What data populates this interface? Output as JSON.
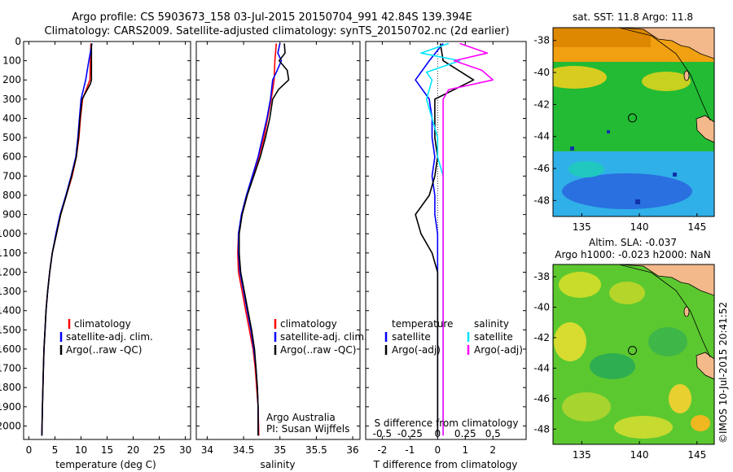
{
  "figure": {
    "title_line1": "Argo profile: CS 5903673_158 03-Jul-2015 20150704_991 42.84S 139.394E",
    "title_line2": "Climatology: CARS2009. Satellite-adjusted climatology: synTS_20150702.nc (2d earlier)",
    "credit": "©IMOS 10-Jul-2015 20:41:52"
  },
  "colors": {
    "climatology": "#ff0000",
    "satellite": "#0000ff",
    "argo": "#000000",
    "salinity_satellite": "#00e5ff",
    "salinity_argo": "#ff00ff",
    "land": "#f4b98a"
  },
  "chart_data": [
    {
      "type": "line",
      "id": "temperature",
      "xlabel": "temperature (deg C)",
      "ylabel": "",
      "xlim": [
        -1,
        31
      ],
      "ylim": [
        2070,
        0
      ],
      "xticks": [
        0,
        5,
        10,
        15,
        20,
        25,
        30
      ],
      "yticks": [
        0,
        100,
        200,
        300,
        400,
        500,
        600,
        700,
        800,
        900,
        1000,
        1100,
        1200,
        1300,
        1400,
        1500,
        1600,
        1700,
        1800,
        1900,
        2000
      ],
      "legend": {
        "position": "lower-center",
        "entries": [
          "climatology",
          "satellite-adj. clim.",
          "Argo(..raw -QC)"
        ]
      },
      "series": [
        {
          "name": "climatology",
          "color": "#ff0000",
          "points": [
            [
              11.9,
              10
            ],
            [
              11.8,
              100
            ],
            [
              11.7,
              200
            ],
            [
              10.3,
              300
            ],
            [
              9.9,
              400
            ],
            [
              9.6,
              500
            ],
            [
              9.1,
              600
            ],
            [
              8.3,
              700
            ],
            [
              7.2,
              800
            ],
            [
              6.1,
              900
            ],
            [
              5.3,
              1000
            ],
            [
              4.5,
              1100
            ],
            [
              4.0,
              1200
            ],
            [
              3.6,
              1300
            ],
            [
              3.3,
              1400
            ],
            [
              3.1,
              1500
            ],
            [
              2.9,
              1600
            ],
            [
              2.8,
              1700
            ],
            [
              2.7,
              1800
            ],
            [
              2.6,
              1900
            ],
            [
              2.5,
              2050
            ]
          ]
        },
        {
          "name": "satellite-adj. clim.",
          "color": "#0000ff",
          "points": [
            [
              12.1,
              10
            ],
            [
              11.5,
              100
            ],
            [
              10.9,
              200
            ],
            [
              10.0,
              300
            ],
            [
              9.7,
              400
            ],
            [
              9.4,
              500
            ],
            [
              9.0,
              600
            ],
            [
              8.1,
              700
            ],
            [
              7.1,
              800
            ],
            [
              6.0,
              900
            ],
            [
              5.2,
              1000
            ],
            [
              4.5,
              1100
            ],
            [
              4.0,
              1200
            ],
            [
              3.6,
              1300
            ],
            [
              3.3,
              1400
            ],
            [
              3.1,
              1500
            ],
            [
              2.9,
              1600
            ],
            [
              2.8,
              1700
            ],
            [
              2.7,
              1800
            ],
            [
              2.6,
              1900
            ],
            [
              2.5,
              2050
            ]
          ]
        },
        {
          "name": "Argo(..raw -QC)",
          "color": "#000000",
          "points": [
            [
              12.0,
              10
            ],
            [
              12.0,
              100
            ],
            [
              12.0,
              200
            ],
            [
              11.8,
              220
            ],
            [
              10.2,
              300
            ],
            [
              9.8,
              400
            ],
            [
              9.5,
              500
            ],
            [
              9.1,
              600
            ],
            [
              8.2,
              700
            ],
            [
              7.2,
              800
            ],
            [
              6.1,
              900
            ],
            [
              5.3,
              1000
            ],
            [
              4.5,
              1100
            ],
            [
              4.0,
              1200
            ],
            [
              3.6,
              1300
            ],
            [
              3.3,
              1400
            ],
            [
              3.1,
              1500
            ],
            [
              2.9,
              1600
            ],
            [
              2.8,
              1700
            ],
            [
              2.7,
              1800
            ],
            [
              2.6,
              1900
            ],
            [
              2.5,
              2050
            ]
          ]
        }
      ]
    },
    {
      "type": "line",
      "id": "salinity",
      "xlabel": "salinity",
      "ylabel": "",
      "xlim": [
        33.85,
        36.1
      ],
      "ylim": [
        2070,
        0
      ],
      "xticks": [
        34,
        34.5,
        35,
        35.5,
        36
      ],
      "xtick_labels": [
        "34",
        "34.5",
        "35",
        "35.5",
        "36"
      ],
      "legend": {
        "position": "lower-center",
        "entries": [
          "climatology",
          "satellite-adj. clim.",
          "Argo(..raw -QC)"
        ]
      },
      "annotation_lines": [
        "Argo Australia",
        "PI: Susan Wijffels"
      ],
      "series": [
        {
          "name": "climatology",
          "color": "#ff0000",
          "points": [
            [
              34.95,
              10
            ],
            [
              34.93,
              100
            ],
            [
              34.92,
              200
            ],
            [
              34.88,
              300
            ],
            [
              34.83,
              400
            ],
            [
              34.78,
              500
            ],
            [
              34.71,
              600
            ],
            [
              34.63,
              700
            ],
            [
              34.55,
              800
            ],
            [
              34.48,
              900
            ],
            [
              34.43,
              1000
            ],
            [
              34.42,
              1100
            ],
            [
              34.43,
              1200
            ],
            [
              34.48,
              1300
            ],
            [
              34.53,
              1400
            ],
            [
              34.58,
              1500
            ],
            [
              34.63,
              1600
            ],
            [
              34.66,
              1700
            ],
            [
              34.68,
              1800
            ],
            [
              34.7,
              1900
            ],
            [
              34.71,
              2050
            ]
          ]
        },
        {
          "name": "satellite-adj. clim.",
          "color": "#0000ff",
          "points": [
            [
              35.0,
              10
            ],
            [
              34.97,
              60
            ],
            [
              35.02,
              100
            ],
            [
              34.95,
              160
            ],
            [
              34.9,
              200
            ],
            [
              34.87,
              300
            ],
            [
              34.82,
              400
            ],
            [
              34.76,
              500
            ],
            [
              34.7,
              600
            ],
            [
              34.62,
              700
            ],
            [
              34.54,
              800
            ],
            [
              34.47,
              900
            ],
            [
              34.43,
              1000
            ],
            [
              34.43,
              1100
            ],
            [
              34.45,
              1200
            ],
            [
              34.5,
              1300
            ],
            [
              34.55,
              1400
            ],
            [
              34.6,
              1500
            ],
            [
              34.64,
              1600
            ],
            [
              34.67,
              1700
            ],
            [
              34.69,
              1800
            ],
            [
              34.7,
              1900
            ],
            [
              34.7,
              2050
            ]
          ]
        },
        {
          "name": "Argo(..raw -QC)",
          "color": "#000000",
          "points": [
            [
              35.06,
              10
            ],
            [
              35.07,
              60
            ],
            [
              34.99,
              100
            ],
            [
              35.1,
              150
            ],
            [
              35.12,
              200
            ],
            [
              34.98,
              250
            ],
            [
              34.9,
              300
            ],
            [
              34.86,
              400
            ],
            [
              34.8,
              500
            ],
            [
              34.73,
              600
            ],
            [
              34.64,
              700
            ],
            [
              34.55,
              800
            ],
            [
              34.48,
              900
            ],
            [
              34.44,
              1000
            ],
            [
              34.44,
              1100
            ],
            [
              34.46,
              1200
            ],
            [
              34.51,
              1300
            ],
            [
              34.56,
              1400
            ],
            [
              34.61,
              1500
            ],
            [
              34.65,
              1600
            ],
            [
              34.67,
              1700
            ],
            [
              34.69,
              1800
            ],
            [
              34.7,
              1900
            ],
            [
              34.7,
              2050
            ]
          ]
        }
      ]
    },
    {
      "type": "line",
      "id": "difference",
      "xlabel": "T difference from climatology",
      "xlabel_top": "S difference from climatology",
      "ylabel": "",
      "xlim": [
        -2.6,
        3.2
      ],
      "ylim": [
        2070,
        0
      ],
      "xticks": [
        -2,
        -1,
        0,
        1,
        2
      ],
      "top_ticks": [
        -0.5,
        -0.25,
        0,
        0.25,
        0.5
      ],
      "top_tick_labels": [
        "-0.5",
        "-0.25",
        "0",
        "0.25",
        "0.5"
      ],
      "legend_left": {
        "title": "temperature",
        "entries": [
          "satellite",
          "Argo(-adj)"
        ]
      },
      "legend_right": {
        "title": "salinity",
        "entries": [
          "satellite",
          "Argo(-adj)"
        ]
      },
      "series": [
        {
          "name": "satellite",
          "quantity": "temperature",
          "color": "#0000ff",
          "points": [
            [
              0.2,
              10
            ],
            [
              -0.3,
              100
            ],
            [
              -0.8,
              200
            ],
            [
              -0.3,
              300
            ],
            [
              -0.2,
              400
            ],
            [
              -0.2,
              500
            ],
            [
              -0.1,
              600
            ],
            [
              -0.2,
              700
            ],
            [
              -0.1,
              800
            ],
            [
              -0.1,
              900
            ],
            [
              0,
              1000
            ],
            [
              0,
              1200
            ],
            [
              0,
              1400
            ],
            [
              0,
              1600
            ],
            [
              0,
              1800
            ],
            [
              0,
              2050
            ]
          ]
        },
        {
          "name": "Argo(-adj)",
          "quantity": "temperature",
          "color": "#000000",
          "points": [
            [
              0.1,
              10
            ],
            [
              0.2,
              100
            ],
            [
              1.3,
              200
            ],
            [
              -0.1,
              300
            ],
            [
              -0.1,
              400
            ],
            [
              -0.1,
              500
            ],
            [
              0,
              600
            ],
            [
              -0.1,
              700
            ],
            [
              -0.3,
              800
            ],
            [
              -0.8,
              900
            ],
            [
              -0.6,
              1000
            ],
            [
              -0.2,
              1100
            ],
            [
              0,
              1200
            ],
            [
              0,
              1400
            ],
            [
              0,
              1600
            ],
            [
              0,
              1800
            ],
            [
              0,
              2050
            ]
          ]
        },
        {
          "name": "satellite",
          "quantity": "salinity",
          "color": "#00e5ff",
          "points": [
            [
              0.1,
              10
            ],
            [
              -0.15,
              60
            ],
            [
              0.2,
              100
            ],
            [
              -0.1,
              160
            ],
            [
              -0.05,
              200
            ],
            [
              -0.1,
              300
            ],
            [
              -0.05,
              400
            ],
            [
              0,
              500
            ],
            [
              0,
              600
            ],
            [
              0.05,
              700
            ],
            [
              0.05,
              800
            ],
            [
              0.05,
              900
            ],
            [
              0.05,
              1000
            ],
            [
              0.05,
              1200
            ],
            [
              0.05,
              1400
            ],
            [
              0.05,
              1600
            ],
            [
              0.05,
              1800
            ],
            [
              0.05,
              2050
            ]
          ]
        },
        {
          "name": "Argo(-adj)",
          "quantity": "salinity",
          "color": "#ff00ff",
          "points": [
            [
              0.2,
              10
            ],
            [
              0.45,
              60
            ],
            [
              0.15,
              100
            ],
            [
              0.4,
              150
            ],
            [
              0.5,
              200
            ],
            [
              0.1,
              250
            ],
            [
              0.05,
              300
            ],
            [
              0.05,
              400
            ],
            [
              0.05,
              600
            ],
            [
              0.05,
              800
            ],
            [
              0.05,
              1000
            ],
            [
              0.05,
              1200
            ],
            [
              0.05,
              1400
            ],
            [
              0.05,
              1600
            ],
            [
              0.05,
              1800
            ],
            [
              0.05,
              2050
            ]
          ]
        }
      ]
    },
    {
      "type": "heatmap",
      "id": "sst-map",
      "title": "sat. SST: 11.8 Argo: 11.8",
      "xlim": [
        132.5,
        146.5
      ],
      "ylim": [
        -49,
        -37.2
      ],
      "xticks": [
        135,
        140,
        145
      ],
      "yticks": [
        -38,
        -40,
        -42,
        -44,
        -46,
        -48
      ],
      "marker": {
        "lon": 139.394,
        "lat": -42.84
      }
    },
    {
      "type": "heatmap",
      "id": "sla-map",
      "title": "Altim. SLA: -0.037",
      "subtitle": "Argo h1000: -0.023 h2000: NaN",
      "xlim": [
        132.5,
        146.5
      ],
      "ylim": [
        -49,
        -37.2
      ],
      "xticks": [
        135,
        140,
        145
      ],
      "yticks": [
        -38,
        -40,
        -42,
        -44,
        -46,
        -48
      ],
      "marker": {
        "lon": 139.394,
        "lat": -42.84
      }
    }
  ]
}
